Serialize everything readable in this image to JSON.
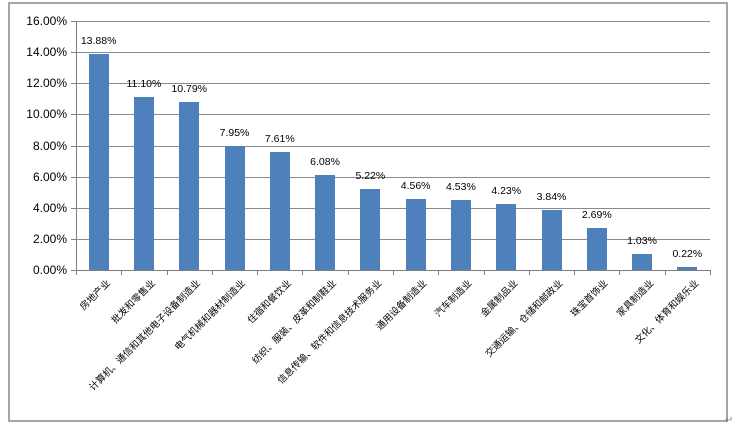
{
  "chart_data": {
    "type": "bar",
    "title": "",
    "xlabel": "",
    "ylabel": "",
    "categories": [
      "房地产业",
      "批发和零售业",
      "计算机、通信和其他电子设备制造业",
      "电气机械和器材制造业",
      "住宿和餐饮业",
      "纺织、服装、皮革和制鞋业",
      "信息传输、软件和信息技术服务业",
      "通用设备制造业",
      "汽车制造业",
      "金属制品业",
      "交通运输、仓储和邮政业",
      "珠宝首饰业",
      "家具制造业",
      "文化、体育和娱乐业"
    ],
    "values": [
      13.88,
      11.1,
      10.79,
      7.95,
      7.61,
      6.08,
      5.22,
      4.56,
      4.53,
      4.23,
      3.84,
      2.69,
      1.03,
      0.22
    ],
    "value_labels": [
      "13.88%",
      "11.10%",
      "10.79%",
      "7.95%",
      "7.61%",
      "6.08%",
      "5.22%",
      "4.56%",
      "4.53%",
      "4.23%",
      "3.84%",
      "2.69%",
      "1.03%",
      "0.22%"
    ],
    "ylim": [
      0,
      16
    ],
    "ytick_step": 2,
    "ytick_labels": [
      "16.00%",
      "14.00%",
      "12.00%",
      "10.00%",
      "8.00%",
      "6.00%",
      "4.00%",
      "2.00%",
      "0.00%"
    ],
    "grid": true,
    "legend": "none",
    "colors": {
      "bar": "#4E80BC",
      "gridline": "#8A8A8A",
      "axis": "#7F7F7F",
      "frame_border": "#A6A6A6",
      "text": "#000000",
      "paragraph_mark": "#808080"
    }
  },
  "page": {
    "paragraph_mark": "↵"
  }
}
